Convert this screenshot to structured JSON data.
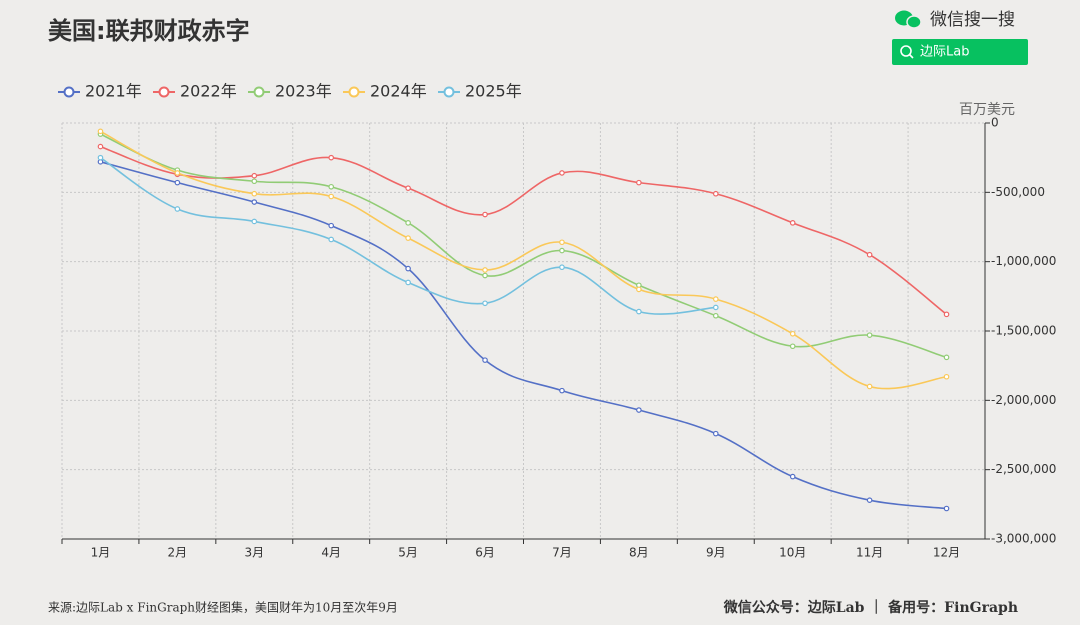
{
  "chart_data": {
    "type": "line",
    "title": "美国:联邦财政赤字",
    "brand": {
      "search": "微信搜一搜",
      "button": "边际Lab"
    },
    "y_axis_label": "百万美元",
    "source": "来源:边际Lab x FinGraph财经图集，美国财年为10月至次年9月",
    "footer": "微信公众号：边际Lab ｜ 备用号：FinGraph",
    "categories": [
      "1月",
      "2月",
      "3月",
      "4月",
      "5月",
      "6月",
      "7月",
      "8月",
      "9月",
      "10月",
      "11月",
      "12月"
    ],
    "series": [
      {
        "name": "2021年",
        "color": "#5470c6",
        "values": [
          -280000,
          -430000,
          -570000,
          -740000,
          -1050000,
          -1710000,
          -1930000,
          -2070000,
          -2240000,
          -2550000,
          -2720000,
          -2780000
        ]
      },
      {
        "name": "2022年",
        "color": "#ee6666",
        "values": [
          -170000,
          -370000,
          -380000,
          -250000,
          -470000,
          -660000,
          -360000,
          -430000,
          -510000,
          -720000,
          -950000,
          -1380000
        ]
      },
      {
        "name": "2023年",
        "color": "#91cc75",
        "values": [
          -80000,
          -340000,
          -420000,
          -460000,
          -720000,
          -1100000,
          -920000,
          -1170000,
          -1390000,
          -1610000,
          -1530000,
          -1690000
        ]
      },
      {
        "name": "2024年",
        "color": "#fac858",
        "values": [
          -60000,
          -360000,
          -510000,
          -530000,
          -830000,
          -1060000,
          -860000,
          -1200000,
          -1270000,
          -1520000,
          -1900000,
          -1830000
        ]
      },
      {
        "name": "2025年",
        "color": "#73c0de",
        "values": [
          -250000,
          -620000,
          -710000,
          -840000,
          -1150000,
          -1300000,
          -1040000,
          -1360000,
          -1330000,
          null,
          null,
          null
        ]
      }
    ],
    "ylim": [
      -3000000,
      0
    ],
    "yticks": [
      0,
      {
        "value": -500000,
        "label": "-500,000"
      },
      {
        "value": -1000000,
        "label": "-1,000,000"
      },
      {
        "value": -1500000,
        "label": "-1,500,000"
      },
      {
        "value": -2000000,
        "label": "-2,000,000"
      },
      {
        "value": -2500000,
        "label": "-2,500,000"
      },
      {
        "value": -3000000,
        "label": "-3,000,000"
      }
    ],
    "grid": true,
    "legend": "top"
  }
}
